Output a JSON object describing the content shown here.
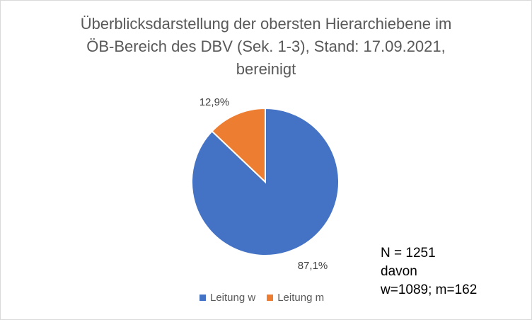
{
  "chart_data": {
    "type": "pie",
    "title_lines": [
      "Überblicksdarstellung der obersten Hierarchiebene im",
      "ÖB-Bereich des DBV (Sek. 1-3), Stand: 17.09.2021,",
      "bereinigt"
    ],
    "slices": [
      {
        "name": "Leitung w",
        "value": 87.1,
        "label": "87,1%",
        "color": "#4472c4"
      },
      {
        "name": "Leitung m",
        "value": 12.9,
        "label": "12,9%",
        "color": "#ed7d31"
      }
    ],
    "legend_position": "bottom",
    "annotation_lines": [
      "N = 1251",
      "davon",
      "w=1089; m=162"
    ]
  }
}
